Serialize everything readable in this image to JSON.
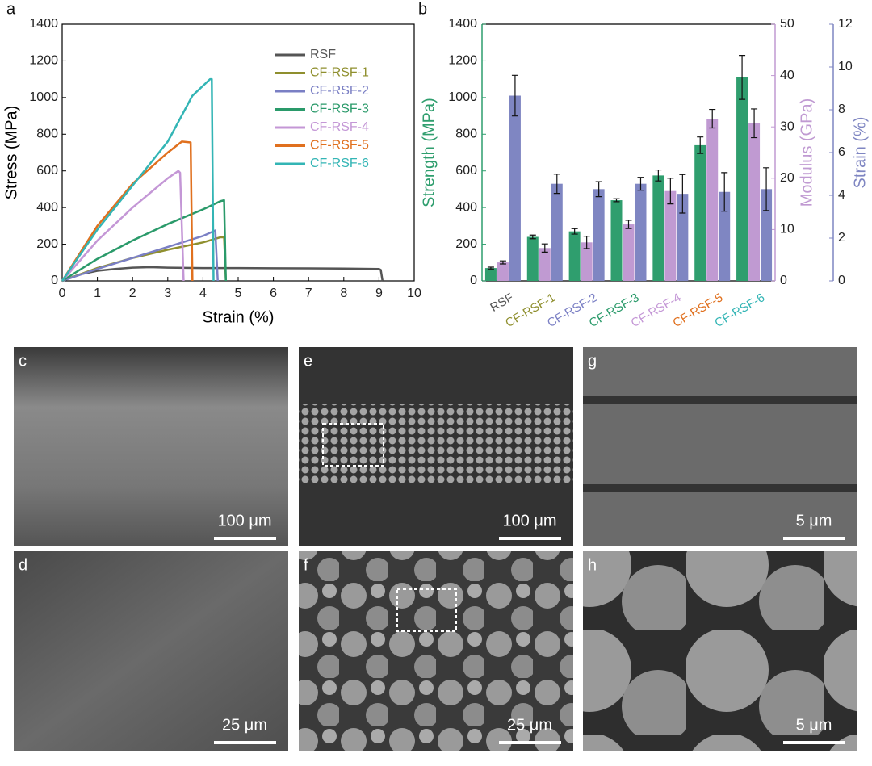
{
  "chart_data": [
    {
      "type": "line",
      "panel": "a",
      "xlabel": "Strain (%)",
      "ylabel": "Stress (MPa)",
      "xlim": [
        0,
        10
      ],
      "xticks": [
        0,
        1,
        2,
        3,
        4,
        5,
        6,
        7,
        8,
        9,
        10
      ],
      "ylim": [
        0,
        1400
      ],
      "yticks": [
        0,
        200,
        400,
        600,
        800,
        1000,
        1200,
        1400
      ],
      "legend": "upper right",
      "series": [
        {
          "name": "RSF",
          "color": "#555555",
          "x": [
            0,
            0.5,
            1,
            1.5,
            2,
            2.5,
            3,
            4,
            5,
            6,
            7,
            8,
            9,
            9.05,
            9.1
          ],
          "values": [
            0,
            35,
            55,
            65,
            72,
            75,
            72,
            70,
            70,
            69,
            68,
            67,
            65,
            60,
            0
          ]
        },
        {
          "name": "CF-RSF-1",
          "color": "#8f8f2e",
          "x": [
            0,
            1,
            2,
            3,
            4,
            4.5,
            4.6,
            4.65
          ],
          "values": [
            0,
            70,
            125,
            170,
            210,
            238,
            238,
            0
          ]
        },
        {
          "name": "CF-RSF-2",
          "color": "#7a7fc4",
          "x": [
            0,
            1,
            2,
            3,
            4,
            4.35,
            4.42
          ],
          "values": [
            0,
            65,
            125,
            185,
            245,
            275,
            0
          ]
        },
        {
          "name": "CF-RSF-3",
          "color": "#2a9a6a",
          "x": [
            0,
            1,
            2,
            3,
            4,
            4.5,
            4.6,
            4.65
          ],
          "values": [
            0,
            120,
            220,
            310,
            390,
            435,
            440,
            0
          ]
        },
        {
          "name": "CF-RSF-4",
          "color": "#c497d6",
          "x": [
            0,
            1,
            2,
            3,
            3.3,
            3.35,
            3.45
          ],
          "values": [
            0,
            220,
            400,
            560,
            600,
            590,
            0
          ]
        },
        {
          "name": "CF-RSF-5",
          "color": "#e0701e",
          "x": [
            0,
            1,
            2,
            3,
            3.4,
            3.65,
            3.7
          ],
          "values": [
            0,
            300,
            530,
            700,
            760,
            755,
            0
          ]
        },
        {
          "name": "CF-RSF-6",
          "color": "#33b5b5",
          "x": [
            0,
            1,
            2,
            3,
            3.7,
            4.2,
            4.25,
            4.3
          ],
          "values": [
            0,
            280,
            520,
            760,
            1010,
            1100,
            1100,
            0
          ]
        }
      ]
    },
    {
      "type": "bar",
      "panel": "b",
      "categories": [
        "RSF",
        "CF-RSF-1",
        "CF-RSF-2",
        "CF-RSF-3",
        "CF-RSF-4",
        "CF-RSF-5",
        "CF-RSF-6"
      ],
      "category_colors": [
        "#555555",
        "#8f8f2e",
        "#7a7fc4",
        "#2a9a6a",
        "#c497d6",
        "#e0701e",
        "#33b5b5"
      ],
      "ylabel": "Strength (MPa)",
      "y2label": "Modulus (GPa)",
      "y3label": "Strain (%)",
      "ylim": [
        0,
        1400
      ],
      "yticks": [
        0,
        200,
        400,
        600,
        800,
        1000,
        1200,
        1400
      ],
      "y2lim": [
        0,
        50
      ],
      "y2ticks": [
        0,
        10,
        20,
        30,
        40,
        50
      ],
      "y3lim": [
        0,
        12
      ],
      "y3ticks": [
        0,
        2,
        4,
        6,
        8,
        10,
        12
      ],
      "series": [
        {
          "name": "Strength (MPa)",
          "color": "#2f9e6e",
          "axis": "y",
          "values": [
            70,
            240,
            270,
            440,
            575,
            740,
            1110
          ],
          "errors": [
            5,
            10,
            15,
            8,
            30,
            45,
            120
          ]
        },
        {
          "name": "Modulus (GPa)",
          "color": "#c09ad2",
          "axis": "y2",
          "values": [
            3.6,
            6.4,
            7.5,
            11,
            17.5,
            31.6,
            30.7
          ],
          "errors": [
            0.3,
            0.8,
            1.2,
            0.8,
            2.5,
            1.8,
            2.8
          ]
        },
        {
          "name": "Strain (%)",
          "color": "#7f86c2",
          "axis": "y3",
          "values": [
            8.66,
            4.54,
            4.29,
            4.54,
            4.07,
            4.16,
            4.29
          ],
          "errors": [
            0.95,
            0.45,
            0.35,
            0.3,
            0.9,
            0.9,
            1.0
          ]
        }
      ]
    }
  ],
  "panels": [
    {
      "label": "c",
      "scale_bar": "100 μm"
    },
    {
      "label": "e",
      "scale_bar": "100 μm"
    },
    {
      "label": "g",
      "scale_bar": "5 μm"
    },
    {
      "label": "d",
      "scale_bar": "25 μm"
    },
    {
      "label": "f",
      "scale_bar": "25 μm"
    },
    {
      "label": "h",
      "scale_bar": "5 μm"
    }
  ]
}
